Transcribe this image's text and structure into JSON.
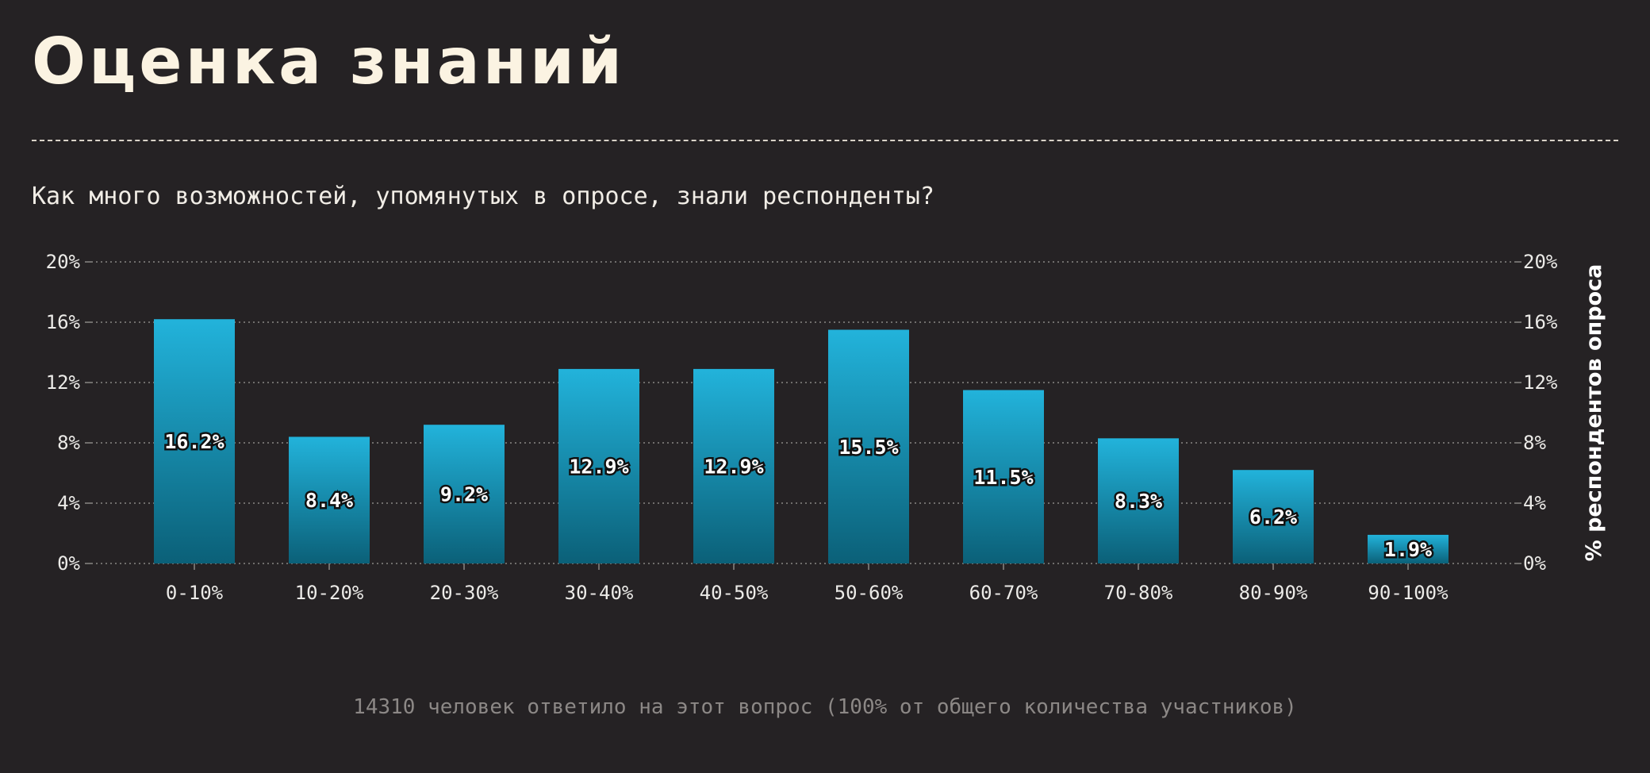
{
  "header": {
    "title": "Оценка знаний",
    "subtitle": "Как много возможностей, упомянутых в опросе, знали респонденты?"
  },
  "footer": {
    "note": "14310 человек ответило на этот вопрос (100% от общего количества участников)"
  },
  "colors": {
    "background": "#252224",
    "bar_top": "#22b3db",
    "bar_bottom": "#0b6078",
    "grid": "#8a8784"
  },
  "chart_data": {
    "type": "bar",
    "categories": [
      "0-10%",
      "10-20%",
      "20-30%",
      "30-40%",
      "40-50%",
      "50-60%",
      "60-70%",
      "70-80%",
      "80-90%",
      "90-100%"
    ],
    "values": [
      16.2,
      8.4,
      9.2,
      12.9,
      12.9,
      15.5,
      11.5,
      8.3,
      6.2,
      1.9
    ],
    "value_labels": [
      "16.2%",
      "8.4%",
      "9.2%",
      "12.9%",
      "12.9%",
      "15.5%",
      "11.5%",
      "8.3%",
      "6.2%",
      "1.9%"
    ],
    "ylim": [
      0,
      20
    ],
    "yticks": [
      0,
      4,
      8,
      12,
      16,
      20
    ],
    "ytick_labels": [
      "0%",
      "4%",
      "8%",
      "12%",
      "16%",
      "20%"
    ],
    "ylabel_right": "% респондентов опроса",
    "grid": true
  }
}
